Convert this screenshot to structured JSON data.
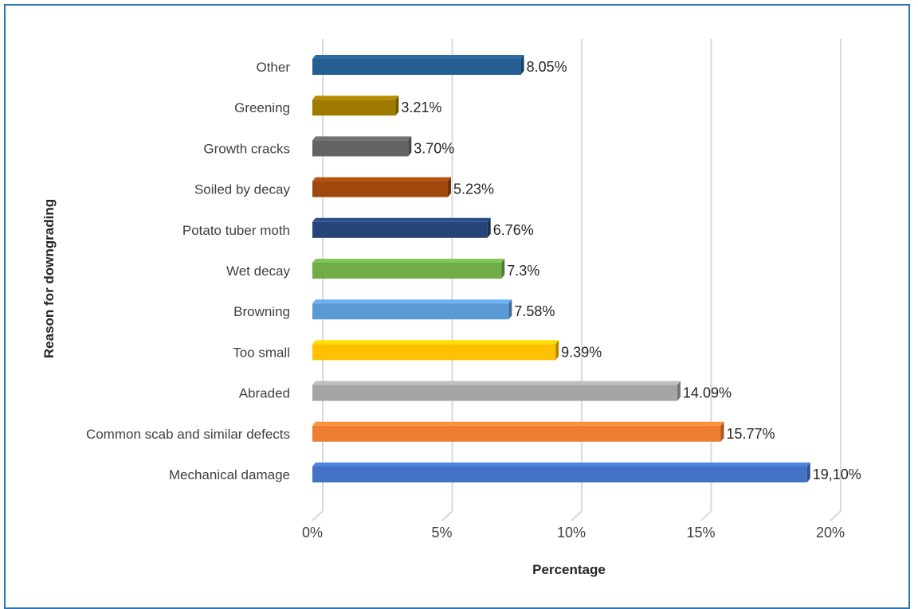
{
  "chart_data": {
    "type": "bar",
    "orientation": "horizontal",
    "categories": [
      "Other",
      "Greening",
      "Growth cracks",
      "Soiled by decay",
      "Potato tuber moth",
      "Wet decay",
      "Browning",
      "Too small",
      "Abraded",
      "Common scab and similar defects",
      "Mechanical damage"
    ],
    "values": [
      8.05,
      3.21,
      3.7,
      5.23,
      6.76,
      7.3,
      7.58,
      9.39,
      14.09,
      15.77,
      19.1
    ],
    "data_labels": [
      "8.05%",
      "3.21%",
      "3.70%",
      "5.23%",
      "6.76%",
      "7.3%",
      "7.58%",
      "9.39%",
      "14.09%",
      "15.77%",
      "19,10%"
    ],
    "colors": [
      "#255e91",
      "#9e7b00",
      "#636363",
      "#9e480e",
      "#264478",
      "#70ad47",
      "#5b9bd5",
      "#ffc000",
      "#a5a5a5",
      "#ed7d31",
      "#4472c4"
    ],
    "xticks": [
      "0%",
      "5%",
      "10%",
      "15%",
      "20%"
    ],
    "xlim": [
      0,
      20
    ],
    "xlabel": "Percentage",
    "ylabel": "Reason for downgrading",
    "title": "",
    "grid": true,
    "style": "3d"
  }
}
